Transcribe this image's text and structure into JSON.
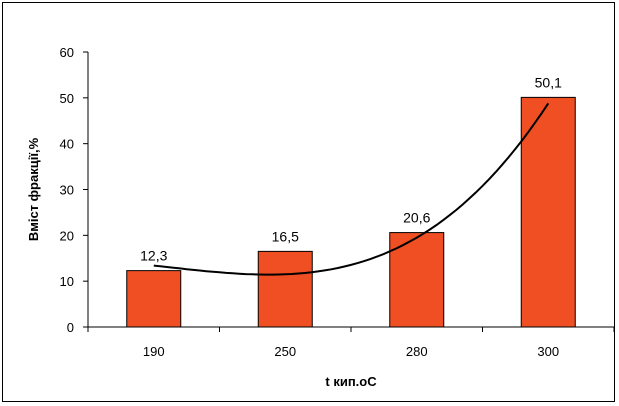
{
  "chart_data": {
    "type": "bar",
    "categories": [
      "190",
      "250",
      "280",
      "300"
    ],
    "values": [
      12.3,
      16.5,
      20.6,
      50.1
    ],
    "data_labels": [
      "12,3",
      "16,5",
      "20,6",
      "50,1"
    ],
    "xlabel": "t кип.оС",
    "ylabel": "Вміст фракції,%",
    "ylim": [
      0,
      60
    ],
    "yticks": [
      0,
      10,
      20,
      30,
      40,
      50,
      60
    ],
    "grid": false,
    "trendline": {
      "type": "polynomial",
      "x": [
        1,
        2,
        3,
        4
      ],
      "y": [
        13.4,
        11.5,
        19.5,
        48.8
      ]
    },
    "colors": {
      "bar": "#f04e23",
      "bar_edge": "#000000",
      "trendline": "#000000"
    }
  }
}
